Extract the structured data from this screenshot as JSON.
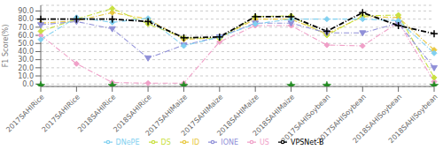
{
  "chart_data": {
    "type": "line",
    "ylabel": "F1 Score(%)",
    "categories": [
      "2017SAHIRice",
      "2017SAHIRice",
      "2018SAHIRice",
      "2018SAHIRice",
      "2017SAHIMaize",
      "2017SAHIMaize",
      "2018SAHIMaize",
      "2018SAHIMaize",
      "2017SAHISoybean",
      "2017SAHISoybean",
      "2018SAHISoybean",
      "2018SAHISoybean"
    ],
    "series": [
      {
        "name": "ID",
        "color": "#e8c840",
        "line_style": "dashdot",
        "marker": "diamond",
        "values": [
          75,
          78,
          88,
          80,
          55,
          57,
          80,
          80,
          62,
          83,
          82,
          42
        ]
      },
      {
        "name": "US",
        "color": "#f0a0c8",
        "line_style": "dashdot",
        "marker": "diamond",
        "values": [
          60,
          25,
          2,
          1,
          1,
          52,
          72,
          72,
          48,
          47,
          76,
          3
        ]
      },
      {
        "name": "DS",
        "color": "#c8e040",
        "line_style": "dashdot",
        "marker": "diamond",
        "values": [
          65,
          80,
          93,
          74,
          57,
          56,
          83,
          84,
          60,
          84,
          85,
          8
        ]
      },
      {
        "name": "IONE",
        "color": "#9090d8",
        "line_style": "dashdot",
        "marker": "triangle_down",
        "values": [
          73,
          77,
          68,
          32,
          48,
          58,
          75,
          75,
          63,
          63,
          75,
          20
        ]
      },
      {
        "name": "DNePE",
        "color": "#80d0f0",
        "line_style": "dashdot",
        "marker": "diamond",
        "values": [
          55,
          82,
          76,
          81,
          47,
          58,
          74,
          80,
          80,
          80,
          78,
          38
        ]
      },
      {
        "name": "VPSNet-B",
        "color": "#000000",
        "line_style": "dashdot",
        "marker": "plus",
        "values": [
          80,
          80,
          80,
          77,
          57,
          58,
          83,
          83,
          65,
          88,
          72,
          62
        ]
      }
    ],
    "stars": {
      "color": "#228B22",
      "marker": "star",
      "values": [
        -2.0,
        null,
        -2.0,
        null,
        -2.0,
        null,
        null,
        -2.0,
        -2.0,
        null,
        null,
        -2.0
      ]
    },
    "ylim": [
      -3,
      97
    ],
    "yticks": [
      {
        "value": 0,
        "label": "0.0"
      },
      {
        "value": 10,
        "label": "10.0"
      },
      {
        "value": 20,
        "label": "20.0"
      },
      {
        "value": 30,
        "label": "30.0"
      },
      {
        "value": 40,
        "label": "40.0"
      },
      {
        "value": 50,
        "label": "50.0"
      },
      {
        "value": 60,
        "label": "60.0"
      },
      {
        "value": 70,
        "label": "70.0"
      },
      {
        "value": 80,
        "label": "80.0"
      },
      {
        "value": 90,
        "label": "90.0"
      }
    ],
    "grid": true,
    "legend": "bottom"
  }
}
